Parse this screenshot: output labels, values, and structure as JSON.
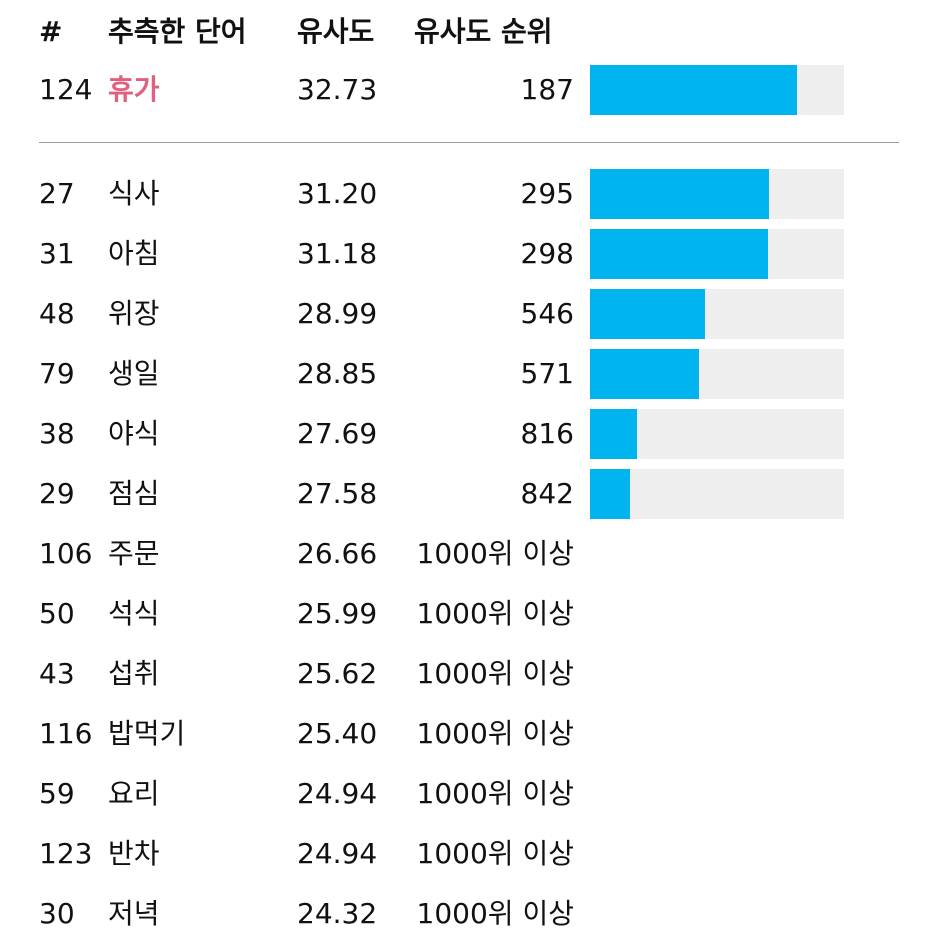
{
  "header": {
    "num": "#",
    "word": "추측한 단어",
    "similarity": "유사도",
    "rank": "유사도 순위"
  },
  "latest_guess": {
    "num": "124",
    "word": "휴가",
    "similarity": "32.73",
    "rank": "187",
    "bar_fraction": 0.815
  },
  "guesses": [
    {
      "num": "27",
      "word": "식사",
      "similarity": "31.20",
      "rank": "295",
      "bar_fraction": 0.705
    },
    {
      "num": "31",
      "word": "아침",
      "similarity": "31.18",
      "rank": "298",
      "bar_fraction": 0.702
    },
    {
      "num": "48",
      "word": "위장",
      "similarity": "28.99",
      "rank": "546",
      "bar_fraction": 0.454
    },
    {
      "num": "79",
      "word": "생일",
      "similarity": "28.85",
      "rank": "571",
      "bar_fraction": 0.429
    },
    {
      "num": "38",
      "word": "야식",
      "similarity": "27.69",
      "rank": "816",
      "bar_fraction": 0.184
    },
    {
      "num": "29",
      "word": "점심",
      "similarity": "27.58",
      "rank": "842",
      "bar_fraction": 0.158
    },
    {
      "num": "106",
      "word": "주문",
      "similarity": "26.66",
      "rank": "1000위 이상"
    },
    {
      "num": "50",
      "word": "석식",
      "similarity": "25.99",
      "rank": "1000위 이상"
    },
    {
      "num": "43",
      "word": "섭취",
      "similarity": "25.62",
      "rank": "1000위 이상"
    },
    {
      "num": "116",
      "word": "밥먹기",
      "similarity": "25.40",
      "rank": "1000위 이상"
    },
    {
      "num": "59",
      "word": "요리",
      "similarity": "24.94",
      "rank": "1000위 이상"
    },
    {
      "num": "123",
      "word": "반차",
      "similarity": "24.94",
      "rank": "1000위 이상"
    },
    {
      "num": "30",
      "word": "저녁",
      "similarity": "24.32",
      "rank": "1000위 이상"
    }
  ],
  "colors": {
    "bar_fill": "#00b4f0",
    "bar_track": "#eeeeee",
    "guess_highlight": "#e0607e"
  }
}
